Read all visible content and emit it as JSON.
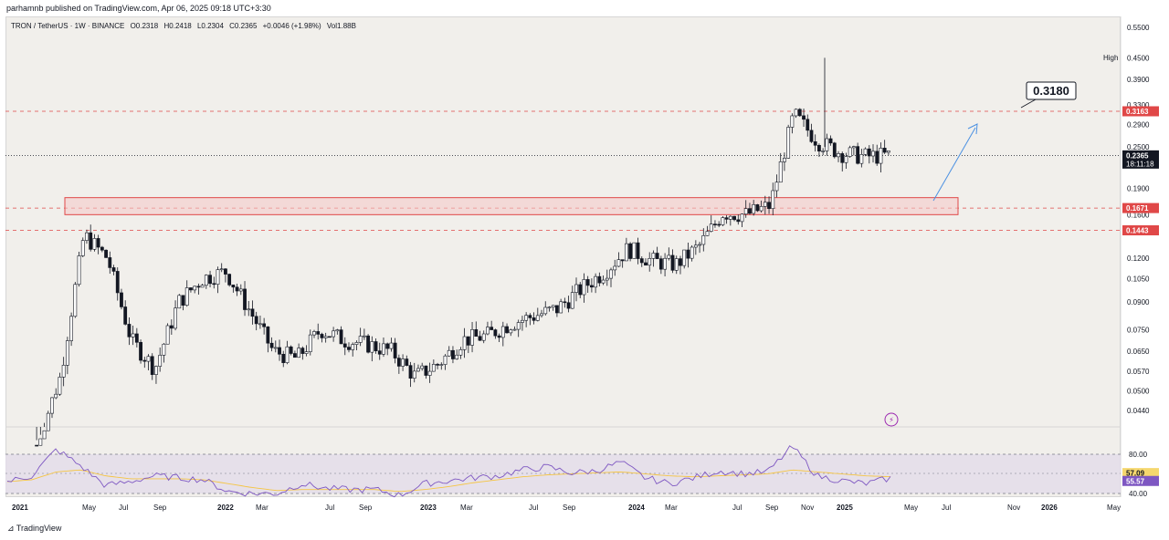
{
  "header": {
    "publish_note": "parhamnb published on TradingView.com, Apr 06, 2025 09:18 UTC+3:30",
    "symbol": "TRON / TetherUS · 1W · BINANCE",
    "open": "O0.2318",
    "high": "H0.2418",
    "low": "L0.2304",
    "close": "C0.2365",
    "change": "+0.0046 (+1.98%)",
    "volume": "Vol1.88B"
  },
  "annotations": {
    "target": "0.3180"
  },
  "price_axis": {
    "ticks": [
      "0.5500",
      "0.4500",
      "0.3900",
      "0.3300",
      "0.2900",
      "0.2500",
      "0.1900",
      "0.1600",
      "0.1200",
      "0.1050",
      "0.0900",
      "0.0750",
      "0.0650",
      "0.0570",
      "0.0500",
      "0.0440"
    ],
    "high_label": "High",
    "tags": [
      {
        "value": "0.3163",
        "color": "#e04848"
      },
      {
        "value": "0.2365",
        "sub": "18:11:18",
        "color": "#131722"
      },
      {
        "value": "0.1671",
        "color": "#e04848"
      },
      {
        "value": "0.1443",
        "color": "#e04848"
      }
    ]
  },
  "rsi_axis": {
    "ticks": [
      "80.00",
      "40.00"
    ],
    "tags": [
      {
        "value": "57.09",
        "color": "#f5d76e",
        "text_color": "#131722"
      },
      {
        "value": "55.57",
        "color": "#7e57c2",
        "text_color": "#ffffff"
      }
    ]
  },
  "time_axis": {
    "labels": [
      "2021",
      "May",
      "Jul",
      "Sep",
      "2022",
      "Mar",
      "Jul",
      "Sep",
      "2023",
      "Mar",
      "Jul",
      "Sep",
      "2024",
      "Mar",
      "Jul",
      "Sep",
      "Nov",
      "2025",
      "May",
      "Jul",
      "Nov",
      "2026",
      "May"
    ]
  },
  "footer": {
    "brand": "TradingView"
  },
  "chart_data": {
    "type": "line",
    "title": "TRON / TetherUS · 1W · BINANCE",
    "scale": "log",
    "ylim": [
      0.038,
      0.56
    ],
    "x": [
      "2021-01",
      "2021-03",
      "2021-04",
      "2021-05",
      "2021-06",
      "2021-07",
      "2021-09",
      "2021-10",
      "2021-11",
      "2022-01",
      "2022-03",
      "2022-05",
      "2022-06",
      "2022-08",
      "2022-09",
      "2022-10",
      "2022-12",
      "2023-01",
      "2023-03",
      "2023-05",
      "2023-07",
      "2023-09",
      "2023-10",
      "2023-12",
      "2024-01",
      "2024-03",
      "2024-04",
      "2024-06",
      "2024-08",
      "2024-09",
      "2024-10",
      "2024-11",
      "2024-12",
      "2025-01",
      "2025-02",
      "2025-03",
      "2025-04"
    ],
    "series": [
      {
        "values": [
          0.03,
          0.055,
          0.14,
          0.12,
          0.07,
          0.058,
          0.09,
          0.105,
          0.11,
          0.085,
          0.065,
          0.062,
          0.075,
          0.07,
          0.068,
          0.065,
          0.055,
          0.06,
          0.07,
          0.072,
          0.078,
          0.082,
          0.086,
          0.098,
          0.11,
          0.128,
          0.118,
          0.115,
          0.13,
          0.162,
          0.16,
          0.17,
          0.31,
          0.26,
          0.24,
          0.235,
          0.2365
        ]
      }
    ],
    "rsi": {
      "name": "RSI",
      "values": [
        52,
        58,
        85,
        68,
        48,
        52,
        58,
        56,
        54,
        42,
        40,
        40,
        50,
        45,
        44,
        44,
        38,
        50,
        53,
        56,
        58,
        64,
        67,
        61,
        63,
        72,
        56,
        50,
        56,
        63,
        60,
        62,
        88,
        58,
        53,
        50,
        55.57
      ],
      "ma": [
        52,
        54,
        62,
        64,
        58,
        55,
        55,
        55,
        54,
        50,
        46,
        43,
        44,
        44,
        44,
        44,
        42,
        44,
        47,
        51,
        54,
        57,
        59,
        60,
        61,
        62,
        60,
        58,
        57,
        58,
        59,
        60,
        64,
        62,
        60,
        58,
        57.09
      ],
      "levels": [
        80,
        40
      ]
    },
    "levels": [
      0.3163,
      0.1671,
      0.1443
    ],
    "last_price": 0.2365,
    "zone": [
      0.16,
      0.179
    ]
  }
}
